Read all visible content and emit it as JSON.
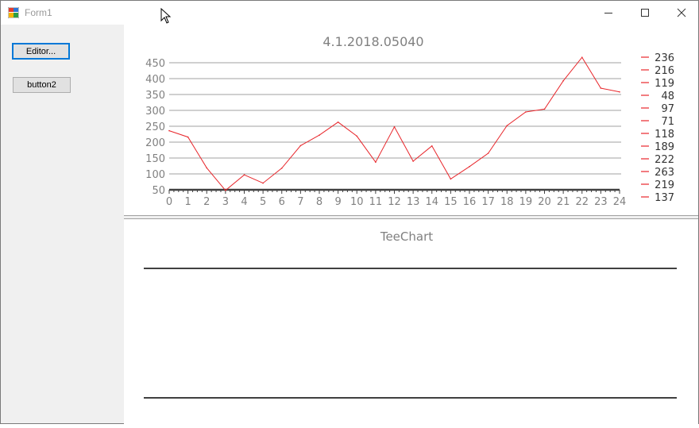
{
  "window": {
    "title": "Form1",
    "controls": {
      "minimize": "minimize",
      "maximize": "maximize",
      "close": "close"
    }
  },
  "buttons": {
    "editor_label": "Editor...",
    "button2_label": "button2"
  },
  "chart_data": [
    {
      "type": "line",
      "title": "4.1.2018.05040",
      "x": [
        0,
        1,
        2,
        3,
        4,
        5,
        6,
        7,
        8,
        9,
        10,
        11,
        12,
        13,
        14,
        15,
        16,
        17,
        18,
        19,
        20,
        21,
        22,
        23,
        24
      ],
      "series": [
        {
          "color": "#e8262b",
          "values": [
            236,
            216,
            119,
            48,
            97,
            71,
            118,
            189,
            222,
            263,
            219,
            137,
            248,
            140,
            188,
            84,
            123,
            165,
            252,
            295,
            304,
            393,
            467,
            370,
            358
          ]
        }
      ],
      "yticks": [
        50,
        100,
        150,
        200,
        250,
        300,
        350,
        400,
        450
      ],
      "xticks": [
        0,
        1,
        2,
        3,
        4,
        5,
        6,
        7,
        8,
        9,
        10,
        11,
        12,
        13,
        14,
        15,
        16,
        17,
        18,
        19,
        20,
        21,
        22,
        23,
        24
      ],
      "ylim": [
        50,
        470
      ],
      "xlim": [
        0,
        24
      ],
      "grid": true,
      "legend_position": "right",
      "legend_entries": [
        "236",
        "216",
        "119",
        "48",
        "97",
        "71",
        "118",
        "189",
        "222",
        "263",
        "219",
        "137"
      ]
    },
    {
      "type": "line",
      "title": "TeeChart",
      "series": [],
      "grid": false
    }
  ],
  "colors": {
    "series": "#e8262b",
    "title_text": "#808080",
    "axis_text": "#808080",
    "grid": "#a0a0a0",
    "axis_line": "#404040"
  }
}
